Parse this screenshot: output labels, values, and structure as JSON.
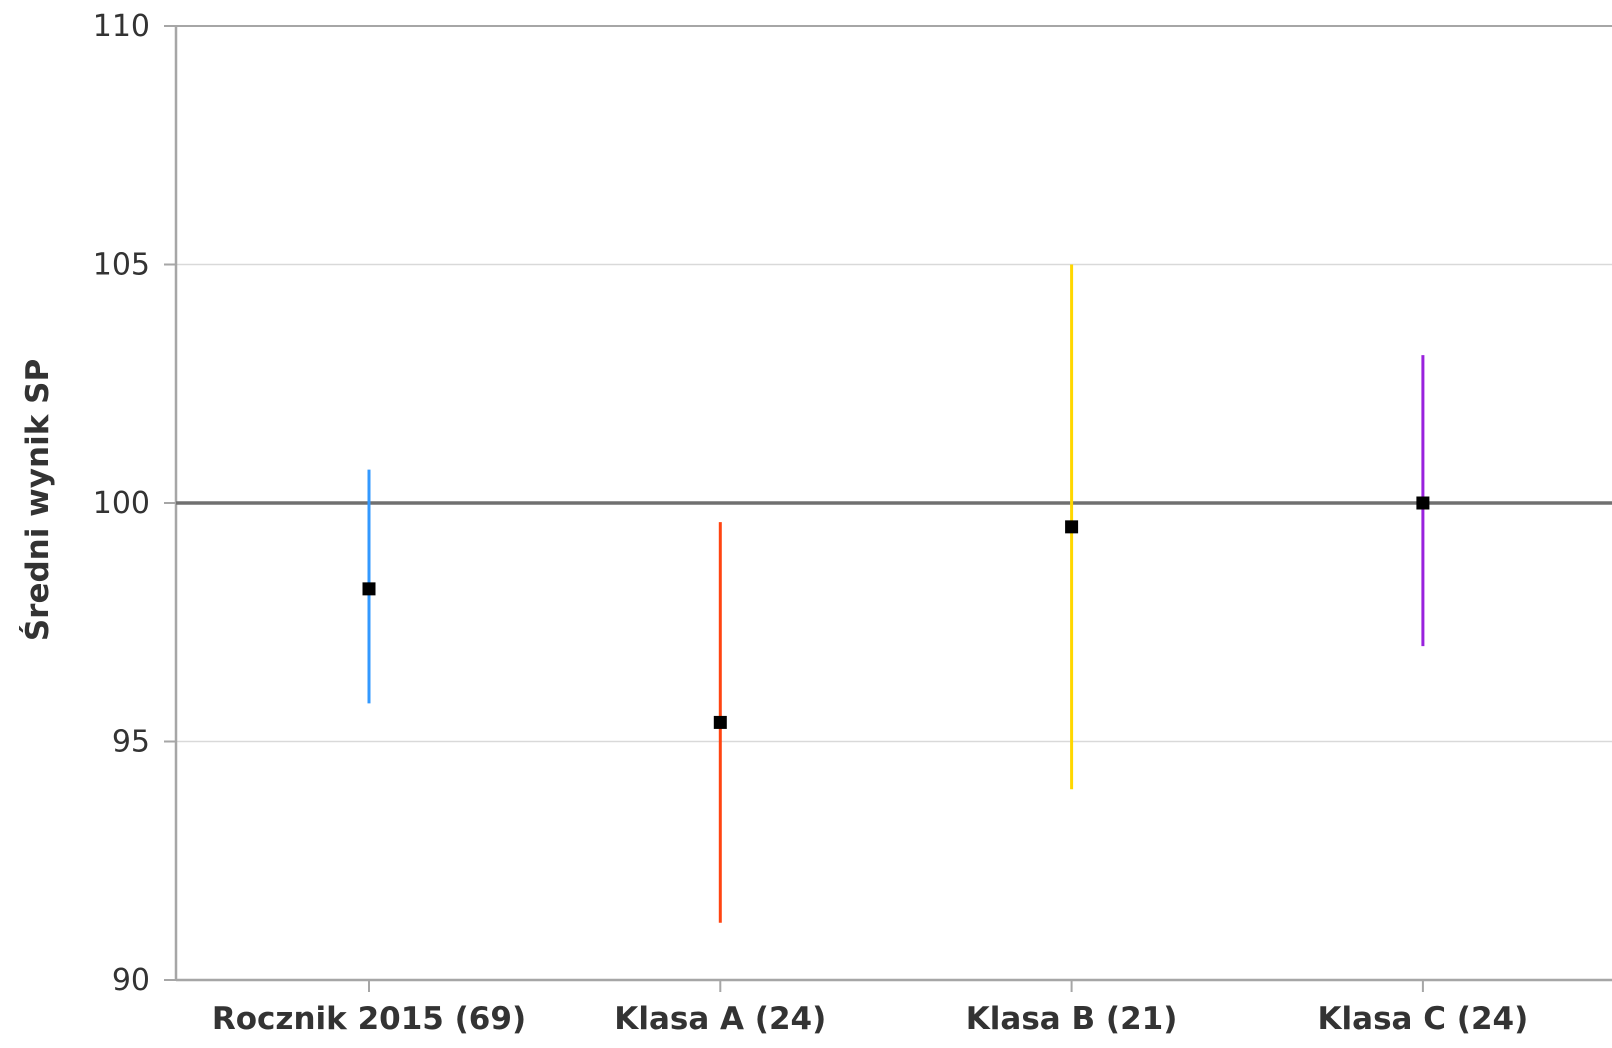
{
  "chart_data": {
    "type": "errorbar",
    "title": "",
    "xlabel": "",
    "ylabel": "Średni wynik SP",
    "ylim": [
      90,
      110
    ],
    "yticks": [
      90,
      95,
      100,
      105,
      110
    ],
    "grid": true,
    "reference_line": 100,
    "categories": [
      "Rocznik 2015 (69)",
      "Klasa A (24)",
      "Klasa B (21)",
      "Klasa C (24)"
    ],
    "points": [
      {
        "category": "Rocznik 2015 (69)",
        "mean": 98.2,
        "low": 95.8,
        "high": 100.7,
        "color": "#3399ff"
      },
      {
        "category": "Klasa A (24)",
        "mean": 95.4,
        "low": 91.2,
        "high": 99.6,
        "color": "#ff4411"
      },
      {
        "category": "Klasa B (21)",
        "mean": 99.5,
        "low": 94.0,
        "high": 105.0,
        "color": "#ffd700"
      },
      {
        "category": "Klasa C (24)",
        "mean": 100.0,
        "low": 97.0,
        "high": 103.1,
        "color": "#9922dd"
      }
    ],
    "colors": {
      "marker": "#000000",
      "reference_line": "#707070",
      "grid": "#d9d9d9",
      "axis": "#a6a6a6"
    }
  }
}
